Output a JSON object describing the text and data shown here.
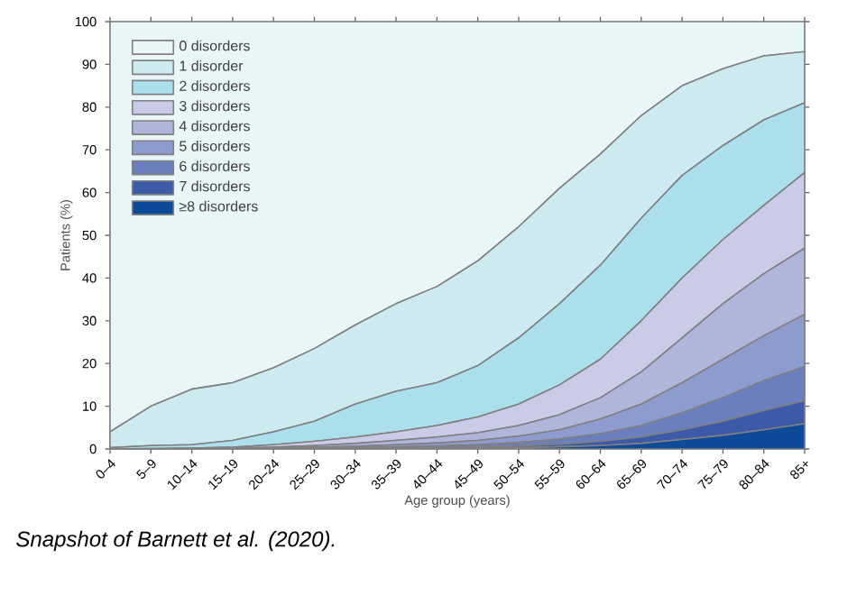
{
  "chart_data": {
    "type": "area",
    "stacked": true,
    "xlabel": "Age group (years)",
    "ylabel": "Patients (%)",
    "categories": [
      "0–4",
      "5–9",
      "10–14",
      "15–19",
      "20–24",
      "25–29",
      "30–34",
      "35–39",
      "40–44",
      "45–49",
      "50–54",
      "55–59",
      "60–64",
      "65–69",
      "70–74",
      "75–79",
      "80–84",
      "85+"
    ],
    "series": [
      {
        "name": "≥8 disorders",
        "color": "#0d4a9a",
        "values": [
          0,
          0,
          0,
          0,
          0,
          0,
          0,
          0.1,
          0.1,
          0.2,
          0.3,
          0.5,
          0.8,
          1.3,
          2.2,
          3.2,
          4.5,
          5.9
        ]
      },
      {
        "name": "7 disorders",
        "color": "#3d5aa8",
        "values": [
          0,
          0,
          0,
          0,
          0,
          0.1,
          0.1,
          0.1,
          0.2,
          0.3,
          0.4,
          0.6,
          1,
          1.5,
          2.3,
          3.3,
          4.5,
          5.4
        ]
      },
      {
        "name": "6 disorders",
        "color": "#6b7fbe",
        "values": [
          0,
          0,
          0,
          0,
          0.1,
          0.1,
          0.2,
          0.3,
          0.4,
          0.5,
          0.8,
          1.2,
          1.8,
          2.7,
          4,
          5.5,
          7,
          8
        ]
      },
      {
        "name": "5 disorders",
        "color": "#8e9bce",
        "values": [
          0,
          0,
          0,
          0.1,
          0.1,
          0.2,
          0.3,
          0.5,
          0.7,
          1,
          1.5,
          2.2,
          3.4,
          5,
          7,
          9,
          10.5,
          12.2
        ]
      },
      {
        "name": "4 disorders",
        "color": "#b0b5dc",
        "values": [
          0,
          0,
          0.1,
          0.1,
          0.2,
          0.4,
          0.7,
          1,
          1.4,
          1.8,
          2.5,
          3.5,
          5,
          7.5,
          10.5,
          13,
          14.5,
          15.5
        ]
      },
      {
        "name": "3 disorders",
        "color": "#cacbe6",
        "values": [
          0,
          0.1,
          0.1,
          0.2,
          0.6,
          1,
          1.5,
          2,
          2.7,
          3.7,
          5,
          7,
          9,
          12,
          14,
          15,
          16,
          17.7
        ]
      },
      {
        "name": "2 disorders",
        "color": "#abdfeb",
        "values": [
          0.3,
          0.7,
          0.8,
          1.6,
          3,
          4.7,
          7.7,
          9.5,
          10,
          12,
          15.5,
          19,
          22,
          24,
          24,
          22,
          20,
          16.3
        ]
      },
      {
        "name": "1 disorder",
        "color": "#cdeaf1",
        "values": [
          3.7,
          9.2,
          13,
          13.5,
          15,
          17,
          18.5,
          20.5,
          22.5,
          24.5,
          26,
          27,
          26,
          24,
          21,
          18,
          15,
          12
        ]
      },
      {
        "name": "0 disorders",
        "color": "#e8f6f8",
        "values": [
          96,
          90,
          86,
          84.5,
          81,
          76.5,
          71,
          66,
          62,
          56,
          48,
          39,
          31,
          22,
          15,
          11,
          8,
          7
        ]
      }
    ],
    "ylim": [
      0,
      100
    ],
    "yticks": [
      0,
      10,
      20,
      30,
      40,
      50,
      60,
      70,
      80,
      90,
      100
    ],
    "legend": "top left",
    "annotations": [
      "Snapshot of Barnett et al. (2020)."
    ]
  }
}
